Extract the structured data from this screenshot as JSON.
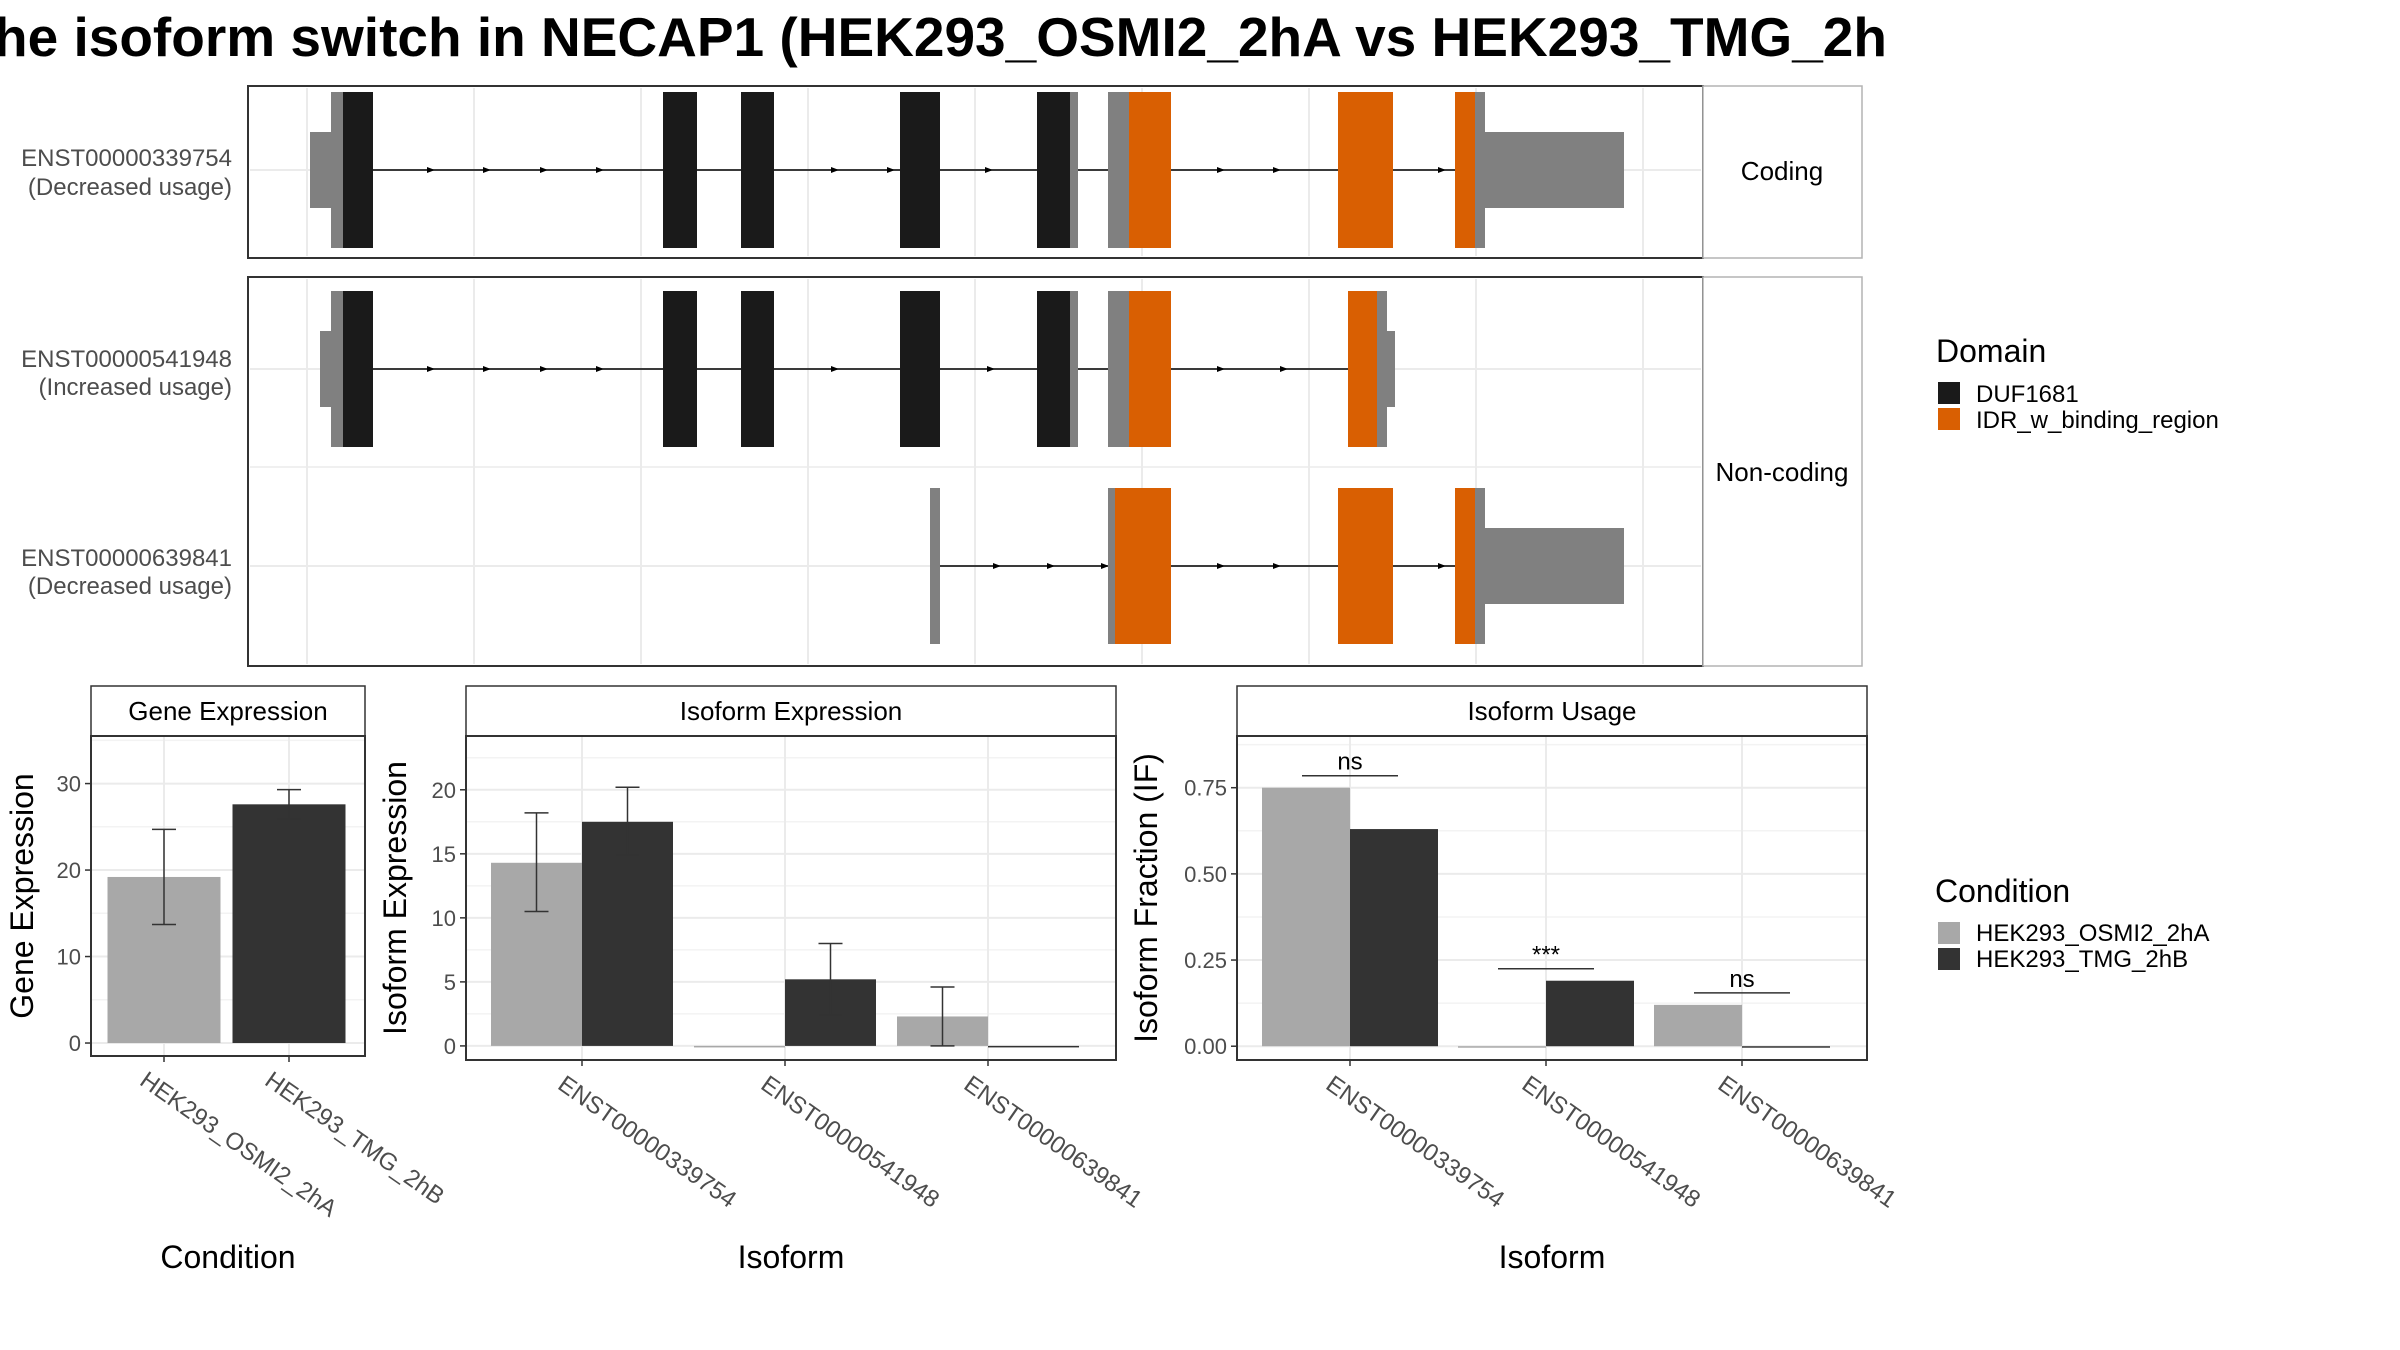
{
  "title": "he isoform switch in NECAP1 (HEK293_OSMI2_2hA vs HEK293_TMG_2h",
  "colors": {
    "bar_cond1": "#a8a8a8",
    "bar_cond2": "#333333",
    "exon_utr": "#808080",
    "domain_DUF1681": "#1a1a1a",
    "domain_IDR": "#d95f02",
    "grid": "#ebebeb",
    "strip_bg": "#ffffff",
    "panel_border": "#333333"
  },
  "structure": {
    "facets": [
      {
        "label": "Coding",
        "transcripts": [
          0
        ]
      },
      {
        "label": "Non-coding",
        "transcripts": [
          1,
          2
        ]
      }
    ],
    "transcripts": [
      {
        "id": "ENST00000339754",
        "usage": "(Decreased usage)"
      },
      {
        "id": "ENST00000541948",
        "usage": "(Increased usage)"
      },
      {
        "id": "ENST00000639841",
        "usage": "(Decreased usage)"
      }
    ],
    "domain_legend": {
      "title": "Domain",
      "items": [
        {
          "label": "DUF1681",
          "color": "#1a1a1a"
        },
        {
          "label": "IDR_w_binding_region",
          "color": "#d95f02"
        }
      ]
    }
  },
  "legend_condition": {
    "title": "Condition",
    "items": [
      {
        "label": "HEK293_OSMI2_2hA",
        "color": "#a8a8a8"
      },
      {
        "label": "HEK293_TMG_2hB",
        "color": "#333333"
      }
    ]
  },
  "chart_data": [
    {
      "type": "bar",
      "title": "Gene Expression",
      "xlabel": "Condition",
      "ylabel": "Gene Expression",
      "categories": [
        "HEK293_OSMI2_2hA",
        "HEK293_TMG_2hB"
      ],
      "values": [
        19.2,
        27.6
      ],
      "errors": [
        [
          13.7,
          24.7
        ],
        [
          25.9,
          29.3
        ]
      ],
      "yticks": [
        0,
        10,
        20,
        30
      ],
      "ylim": [
        -1.5,
        35.5
      ],
      "grid": true
    },
    {
      "type": "bar",
      "title": "Isoform Expression",
      "xlabel": "Isoform",
      "ylabel": "Isoform Expression",
      "categories": [
        "ENST00000339754",
        "ENST00000541948",
        "ENST00000639841"
      ],
      "series": [
        {
          "name": "HEK293_OSMI2_2hA",
          "values": [
            14.3,
            0.0,
            2.3
          ],
          "errors": [
            [
              10.5,
              18.2
            ],
            [
              0,
              0
            ],
            [
              0.0,
              4.6
            ]
          ]
        },
        {
          "name": "HEK293_TMG_2hB",
          "values": [
            17.5,
            5.2,
            0.0
          ],
          "errors": [
            [
              14.9,
              20.2
            ],
            [
              2.4,
              8.0
            ],
            [
              0,
              0
            ]
          ]
        }
      ],
      "yticks": [
        0,
        5,
        10,
        15,
        20
      ],
      "ylim": [
        -1.1,
        24.2
      ],
      "grid": true
    },
    {
      "type": "bar",
      "title": "Isoform Usage",
      "xlabel": "Isoform",
      "ylabel": "Isoform Fraction (IF)",
      "categories": [
        "ENST00000339754",
        "ENST00000541948",
        "ENST00000639841"
      ],
      "series": [
        {
          "name": "HEK293_OSMI2_2hA",
          "values": [
            0.75,
            0.0,
            0.12
          ]
        },
        {
          "name": "HEK293_TMG_2hB",
          "values": [
            0.63,
            0.19,
            0.0
          ]
        }
      ],
      "significance": [
        "ns",
        "***",
        "ns"
      ],
      "yticks": [
        "0.00",
        "0.25",
        "0.50",
        "0.75"
      ],
      "ylim": [
        -0.04,
        0.9
      ],
      "grid": true
    }
  ]
}
